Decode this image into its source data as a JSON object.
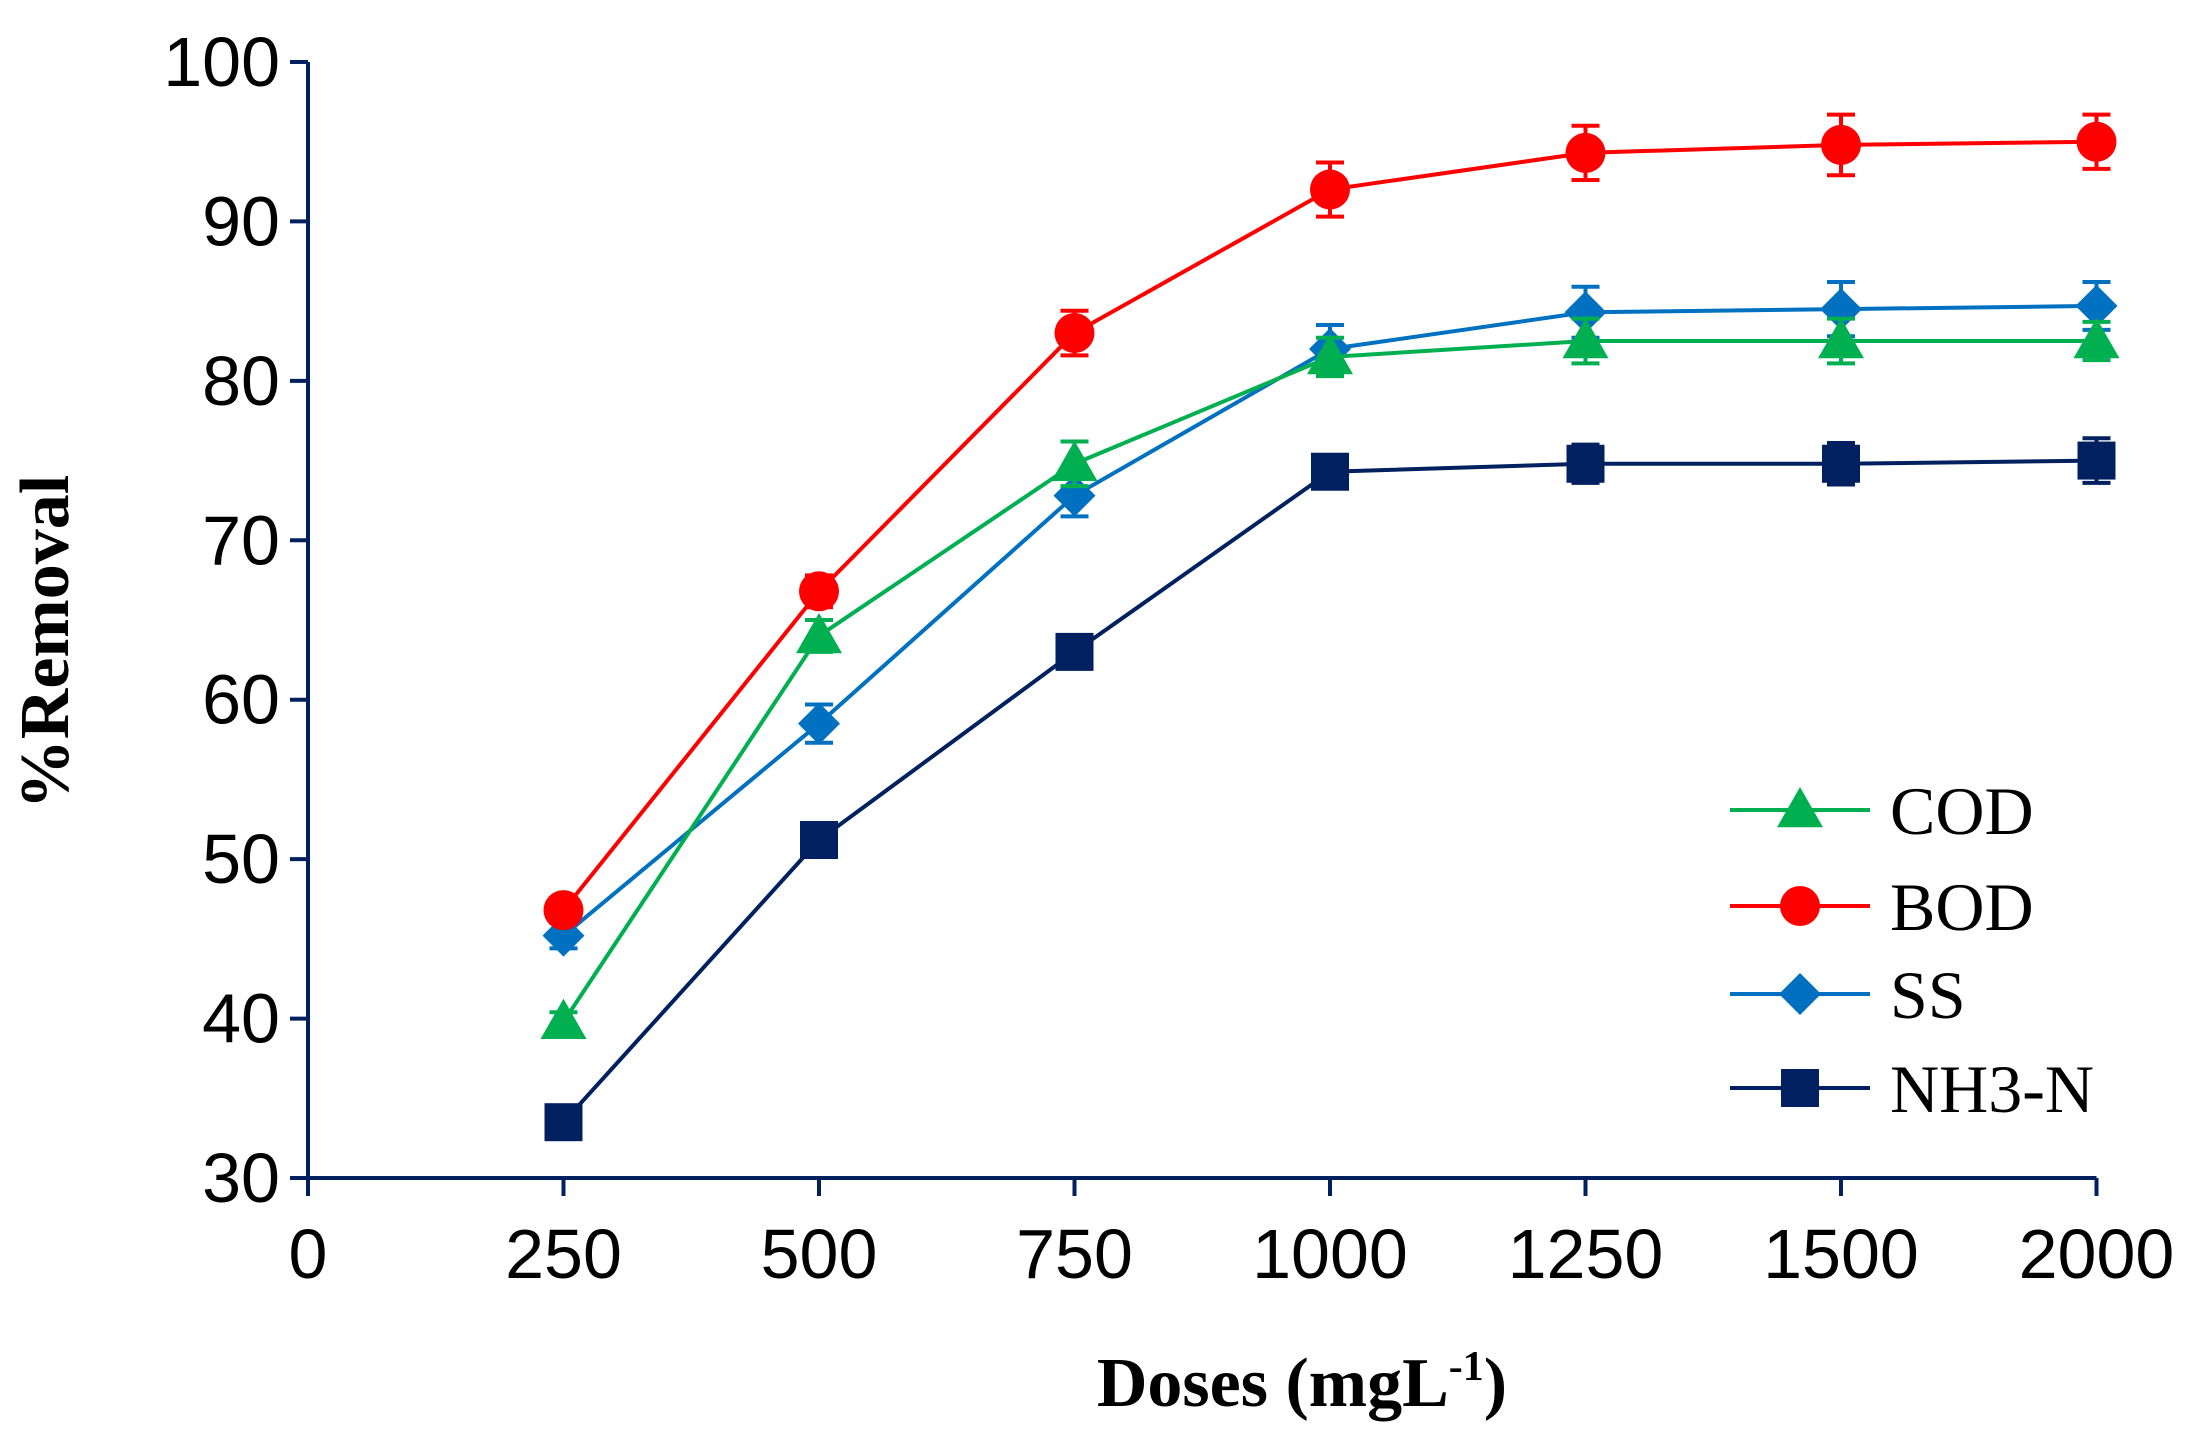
{
  "chart_data": {
    "type": "line",
    "title": "",
    "xlabel": "Doses (mgL",
    "xlabel_sup": "-1",
    "xlabel_end": ")",
    "ylabel": "%Removal",
    "ylim": [
      30,
      100
    ],
    "ytick_labels": [
      "30",
      "40",
      "50",
      "60",
      "70",
      "80",
      "90",
      "100"
    ],
    "x_tick_labels": [
      "0",
      "250",
      "500",
      "750",
      "1000",
      "1250",
      "1500",
      "2000"
    ],
    "categories": [
      "250",
      "500",
      "750",
      "1000",
      "1250",
      "1500",
      "2000"
    ],
    "legend_position": "bottom-right",
    "series": [
      {
        "name": "COD",
        "color": "#00b050",
        "marker": "triangle",
        "values": [
          39.8,
          64.0,
          74.8,
          81.5,
          82.5,
          82.5,
          82.5
        ],
        "errors": [
          0.6,
          1.0,
          1.4,
          1.2,
          1.4,
          1.4,
          1.2
        ]
      },
      {
        "name": "BOD",
        "color": "#ff0000",
        "marker": "circle",
        "values": [
          46.8,
          66.8,
          83.0,
          92.0,
          94.3,
          94.8,
          95.0
        ],
        "errors": [
          0.6,
          1.0,
          1.4,
          1.7,
          1.7,
          1.9,
          1.7
        ]
      },
      {
        "name": "SS",
        "color": "#0070c0",
        "marker": "diamond",
        "values": [
          45.2,
          58.5,
          72.8,
          82.0,
          84.3,
          84.5,
          84.7
        ],
        "errors": [
          0.8,
          1.2,
          1.3,
          1.5,
          1.6,
          1.7,
          1.5
        ]
      },
      {
        "name": "NH3-N",
        "color": "#002060",
        "marker": "square",
        "values": [
          33.5,
          51.2,
          63.0,
          74.3,
          74.8,
          74.8,
          75.0
        ],
        "errors": [
          0.6,
          0.8,
          1.0,
          1.0,
          1.2,
          1.3,
          1.4
        ]
      }
    ]
  }
}
